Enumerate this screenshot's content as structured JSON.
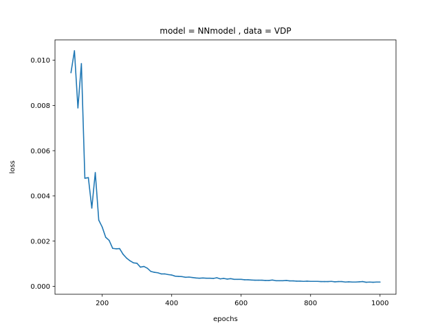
{
  "chart_data": {
    "type": "line",
    "title": "model = NNmodel , data = VDP",
    "xlabel": "epochs",
    "ylabel": "loss",
    "xlim": [
      64,
      1046
    ],
    "ylim": [
      -0.00035,
      0.0109
    ],
    "xticks": [
      200,
      400,
      600,
      800,
      1000
    ],
    "xtick_labels": [
      "200",
      "400",
      "600",
      "800",
      "1000"
    ],
    "yticks": [
      0.0,
      0.002,
      0.004,
      0.006,
      0.008,
      0.01
    ],
    "ytick_labels": [
      "0.000",
      "0.002",
      "0.004",
      "0.006",
      "0.008",
      "0.010"
    ],
    "grid": false,
    "line_color": "#1f77b4",
    "series": [
      {
        "x": [
          110,
          120,
          130,
          140,
          150,
          160,
          170,
          180,
          190,
          200,
          210,
          220,
          230,
          240,
          250,
          260,
          270,
          280,
          290,
          300,
          310,
          320,
          330,
          340,
          350,
          360,
          370,
          380,
          390,
          400,
          410,
          420,
          430,
          440,
          450,
          460,
          470,
          480,
          490,
          500,
          510,
          520,
          530,
          540,
          550,
          560,
          570,
          580,
          590,
          600,
          610,
          620,
          630,
          640,
          650,
          660,
          670,
          680,
          690,
          700,
          710,
          720,
          730,
          740,
          750,
          760,
          770,
          780,
          790,
          800,
          810,
          820,
          830,
          840,
          850,
          860,
          870,
          880,
          890,
          900,
          910,
          920,
          930,
          940,
          950,
          960,
          970,
          980,
          990,
          1000
        ],
        "y": [
          0.00945,
          0.01042,
          0.00789,
          0.00985,
          0.00478,
          0.00481,
          0.00346,
          0.00503,
          0.00293,
          0.00262,
          0.00217,
          0.00203,
          0.00168,
          0.00166,
          0.00167,
          0.00142,
          0.00125,
          0.00113,
          0.00104,
          0.00102,
          0.00085,
          0.00088,
          0.0008,
          0.00066,
          0.00062,
          0.0006,
          0.00055,
          0.00055,
          0.00052,
          0.0005,
          0.00045,
          0.00044,
          0.00043,
          0.0004,
          0.00041,
          0.00039,
          0.00037,
          0.00036,
          0.00037,
          0.00036,
          0.00036,
          0.00035,
          0.00038,
          0.00033,
          0.00035,
          0.00032,
          0.00034,
          0.00031,
          0.00031,
          0.00031,
          0.00029,
          0.00029,
          0.00028,
          0.00027,
          0.00027,
          0.00027,
          0.00026,
          0.00026,
          0.00028,
          0.00025,
          0.00025,
          0.00025,
          0.00026,
          0.00024,
          0.00024,
          0.00023,
          0.00023,
          0.00022,
          0.00023,
          0.00022,
          0.00022,
          0.00022,
          0.00021,
          0.00021,
          0.00021,
          0.00022,
          0.0002,
          0.00021,
          0.00021,
          0.00019,
          0.0002,
          0.00019,
          0.00019,
          0.0002,
          0.00021,
          0.00018,
          0.00019,
          0.00018,
          0.00019,
          0.00019
        ]
      }
    ]
  }
}
